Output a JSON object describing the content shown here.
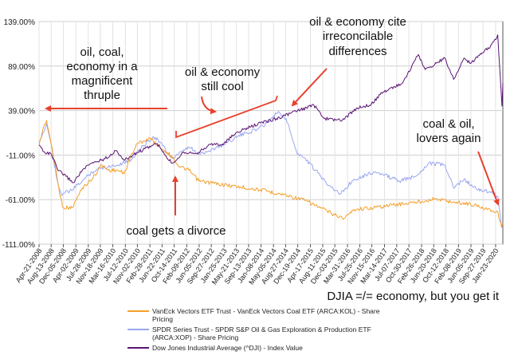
{
  "chart_data": {
    "type": "line",
    "ylim": [
      -111,
      139
    ],
    "y_ticks": [
      "139.00%",
      "89.00%",
      "39.00%",
      "-11.00%",
      "-61.00%",
      "-111.00%"
    ],
    "y_tick_values": [
      139,
      89,
      39,
      -11,
      -61,
      -111
    ],
    "x_range": [
      "2008-04-21",
      "2020-03-31"
    ],
    "x_ticks": [
      "Apr-21-2008",
      "Aug-13-2008",
      "Dec-05-2008",
      "Apr-02-2009",
      "Jul-28-2009",
      "Nov-18-2009",
      "Mar-16-2010",
      "Jul-12-2010",
      "Nov-02-2010",
      "Feb-28-2011",
      "Jun-22-2011",
      "Oct-14-2011",
      "Feb-09-2012",
      "Jun-05-2012",
      "Sep-27-2012",
      "Jan-25-2013",
      "May-21-2013",
      "Sep-13-2013",
      "Jan-08-2014",
      "May-05-2014",
      "Aug-27-2014",
      "Dec-19-2014",
      "Apr-17-2015",
      "Aug-11-2015",
      "Dec-03-2015",
      "Mar-31-2016",
      "Jul-25-2016",
      "Nov-15-2016",
      "Mar-14-2017",
      "Jul-07-2017",
      "Oct-30-2017",
      "Feb-26-2018",
      "Jun-20-2018",
      "Oct-12-2018",
      "Feb-08-2019",
      "Jun-05-2019",
      "Sep-27-2019",
      "Jan-23-2020"
    ],
    "x_tick_dates": [
      "2008-04-21",
      "2008-08-13",
      "2008-12-05",
      "2009-04-02",
      "2009-07-28",
      "2009-11-18",
      "2010-03-16",
      "2010-07-12",
      "2010-11-02",
      "2011-02-28",
      "2011-06-22",
      "2011-10-14",
      "2012-02-09",
      "2012-06-05",
      "2012-09-27",
      "2013-01-25",
      "2013-05-21",
      "2013-09-13",
      "2014-01-08",
      "2014-05-05",
      "2014-08-27",
      "2014-12-19",
      "2015-04-17",
      "2015-08-11",
      "2015-12-03",
      "2016-03-31",
      "2016-07-25",
      "2016-11-15",
      "2017-03-14",
      "2017-07-07",
      "2017-10-30",
      "2018-02-26",
      "2018-06-20",
      "2018-10-12",
      "2019-02-08",
      "2019-06-05",
      "2019-09-27",
      "2020-01-23"
    ],
    "grid": true,
    "legend_position": "bottom-left",
    "series": [
      {
        "name": "VanEck Vectors ETF Trust - VanEck Vectors Coal ETF (ARCA:KOL) - Share Pricing",
        "color": "#f5a02a",
        "x": [
          "2008-04-21",
          "2008-06-01",
          "2008-07-01",
          "2008-08-15",
          "2008-10-01",
          "2008-11-01",
          "2008-12-05",
          "2009-03-01",
          "2009-06-01",
          "2009-09-01",
          "2009-12-01",
          "2010-02-01",
          "2010-05-01",
          "2010-07-01",
          "2010-09-01",
          "2010-11-01",
          "2011-01-01",
          "2011-03-01",
          "2011-06-01",
          "2011-08-10",
          "2011-10-01",
          "2011-12-01",
          "2012-03-01",
          "2012-06-01",
          "2013-01-01",
          "2014-01-01",
          "2014-09-01",
          "2015-03-01",
          "2015-12-01",
          "2016-03-01",
          "2016-06-01",
          "2016-12-01",
          "2017-06-01",
          "2018-01-01",
          "2018-07-01",
          "2019-01-01",
          "2019-06-01",
          "2019-12-01",
          "2020-02-15",
          "2020-03-20",
          "2020-03-31"
        ],
        "y": [
          0,
          20,
          28,
          0,
          -30,
          -55,
          -70,
          -70,
          -48,
          -38,
          -22,
          -28,
          -28,
          -32,
          -12,
          2,
          5,
          8,
          -2,
          -8,
          -14,
          -24,
          -28,
          -40,
          -44,
          -50,
          -56,
          -62,
          -78,
          -82,
          -72,
          -70,
          -67,
          -64,
          -60,
          -64,
          -66,
          -72,
          -76,
          -92,
          -88
        ]
      },
      {
        "name": "SPDR Series Trust - SPDR S&P Oil & Gas Exploration & Production ETF (ARCA:XOP) - Share Pricing",
        "color": "#9aa6ef",
        "x": [
          "2008-04-21",
          "2008-06-01",
          "2008-07-01",
          "2008-08-15",
          "2008-10-01",
          "2008-11-15",
          "2009-03-01",
          "2009-06-01",
          "2009-09-01",
          "2009-12-01",
          "2010-05-01",
          "2010-09-01",
          "2011-01-01",
          "2011-04-01",
          "2011-06-01",
          "2011-08-10",
          "2011-10-01",
          "2012-03-01",
          "2012-06-01",
          "2012-12-01",
          "2013-06-01",
          "2013-12-01",
          "2014-03-01",
          "2014-06-20",
          "2014-09-01",
          "2014-12-15",
          "2015-03-01",
          "2015-06-01",
          "2015-09-01",
          "2016-01-20",
          "2016-06-01",
          "2016-12-01",
          "2017-03-01",
          "2017-08-01",
          "2018-01-01",
          "2018-05-01",
          "2018-10-01",
          "2018-12-24",
          "2019-04-01",
          "2019-08-01",
          "2019-12-01",
          "2020-02-15",
          "2020-03-18",
          "2020-03-31"
        ],
        "y": [
          0,
          15,
          24,
          0,
          -35,
          -55,
          -50,
          -40,
          -30,
          -25,
          -22,
          -16,
          0,
          10,
          4,
          -8,
          -15,
          -2,
          -10,
          -2,
          10,
          18,
          25,
          38,
          30,
          -10,
          -15,
          -28,
          -40,
          -55,
          -38,
          -30,
          -33,
          -40,
          -35,
          -20,
          -22,
          -48,
          -38,
          -50,
          -52,
          -58,
          -92,
          -88
        ]
      },
      {
        "name": "Dow Jones Industrial Average (^DJI) - Index Value",
        "color": "#5b1474",
        "x": [
          "2008-04-21",
          "2008-06-15",
          "2008-08-15",
          "2008-10-15",
          "2009-01-01",
          "2009-03-09",
          "2009-06-01",
          "2009-09-01",
          "2010-01-01",
          "2010-04-20",
          "2010-07-01",
          "2010-11-01",
          "2011-04-29",
          "2011-06-01",
          "2011-08-10",
          "2011-10-03",
          "2012-01-01",
          "2012-06-01",
          "2012-10-01",
          "2013-01-01",
          "2013-06-01",
          "2014-01-01",
          "2014-06-01",
          "2014-12-01",
          "2015-05-20",
          "2015-08-25",
          "2016-02-11",
          "2016-07-01",
          "2016-11-09",
          "2017-03-01",
          "2017-09-01",
          "2018-01-26",
          "2018-04-01",
          "2018-10-03",
          "2018-12-24",
          "2019-04-01",
          "2019-06-03",
          "2019-09-01",
          "2019-12-01",
          "2020-02-12",
          "2020-03-23",
          "2020-03-31"
        ],
        "y": [
          0,
          -8,
          -10,
          -28,
          -35,
          -42,
          -28,
          -20,
          -15,
          -6,
          -17,
          -8,
          2,
          -2,
          -15,
          -20,
          -8,
          -8,
          2,
          0,
          15,
          25,
          30,
          38,
          45,
          30,
          28,
          42,
          46,
          60,
          70,
          102,
          85,
          98,
          74,
          98,
          92,
          103,
          110,
          124,
          44,
          70
        ]
      }
    ]
  },
  "annotations": {
    "thruple_line1": "oil, coal,",
    "thruple_line2": "economy in a",
    "thruple_line3": "magnificent",
    "thruple_line4": "thruple",
    "cool_line1": "oil & economy",
    "cool_line2": "still cool",
    "differences_line1": "oil & economy cite",
    "differences_line2": "irreconcilable",
    "differences_line3": "differences",
    "lovers_line1": "coal & oil,",
    "lovers_line2": "lovers again",
    "divorce": "coal gets a divorce"
  },
  "caption": "DJIA =/= economy, but you get it",
  "legend": {
    "kol_line1": "VanEck Vectors ETF Trust - VanEck Vectors Coal ETF (ARCA:KOL) - Share",
    "kol_line2": "Pricing",
    "xop_line1": "SPDR Series Trust - SPDR S&P Oil & Gas Exploration & Production ETF",
    "xop_line2": "(ARCA:XOP) - Share Pricing",
    "dji_line1": "Dow Jones Industrial Average (^DJI) - Index Value"
  },
  "colors": {
    "annotation_arrow": "#e8412c",
    "kol": "#f5a02a",
    "xop": "#9aa6ef",
    "dji": "#5b1474"
  }
}
